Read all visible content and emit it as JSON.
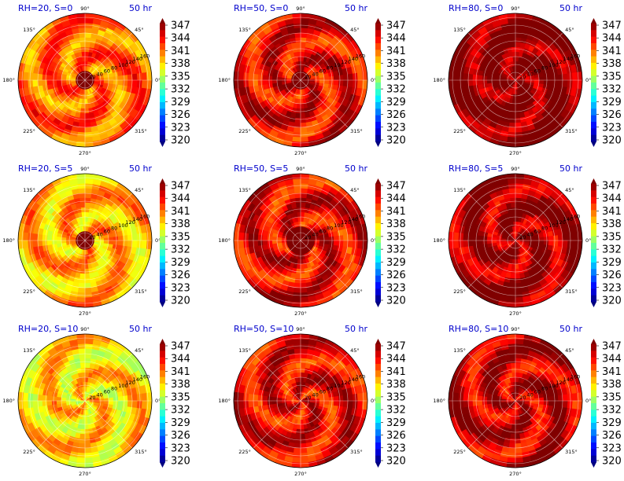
{
  "chart_data": {
    "type": "heatmap",
    "projection": "polar",
    "grid": true,
    "radial_ticks": [
      "20",
      "40",
      "60",
      "80",
      "100",
      "120",
      "140",
      "160"
    ],
    "angle_ticks": [
      "0°",
      "45°",
      "90°",
      "135°",
      "180°",
      "225°",
      "270°",
      "315°"
    ],
    "colorbar": {
      "ticks": [
        "347",
        "344",
        "341",
        "338",
        "335",
        "332",
        "329",
        "326",
        "323",
        "320"
      ],
      "range": [
        320,
        347
      ],
      "colormap": "jet",
      "extend": "both"
    },
    "panels": [
      {
        "title_left": "RH=20, S=0",
        "title_right": "50 hr",
        "mean_value": 341,
        "core_value": 347,
        "core_radius": 20
      },
      {
        "title_left": "RH=50, S=0",
        "title_right": "50 hr",
        "mean_value": 344,
        "core_value": 347,
        "core_radius": 30
      },
      {
        "title_left": "RH=80, S=0",
        "title_right": "50 hr",
        "mean_value": 347,
        "core_value": 347,
        "core_radius": 0
      },
      {
        "title_left": "RH=20, S=5",
        "title_right": "50 hr",
        "mean_value": 339,
        "core_value": 347,
        "core_radius": 20
      },
      {
        "title_left": "RH=50, S=5",
        "title_right": "50 hr",
        "mean_value": 344,
        "core_value": 347,
        "core_radius": 40
      },
      {
        "title_left": "RH=80, S=5",
        "title_right": "50 hr",
        "mean_value": 346,
        "core_value": 347,
        "core_radius": 0
      },
      {
        "title_left": "RH=20, S=10",
        "title_right": "50 hr",
        "mean_value": 338,
        "core_value": 347,
        "core_radius": 0
      },
      {
        "title_left": "RH=50, S=10",
        "title_right": "50 hr",
        "mean_value": 344,
        "core_value": 347,
        "core_radius": 0
      },
      {
        "title_left": "RH=80, S=10",
        "title_right": "50 hr",
        "mean_value": 345,
        "core_value": 347,
        "core_radius": 0
      }
    ]
  }
}
